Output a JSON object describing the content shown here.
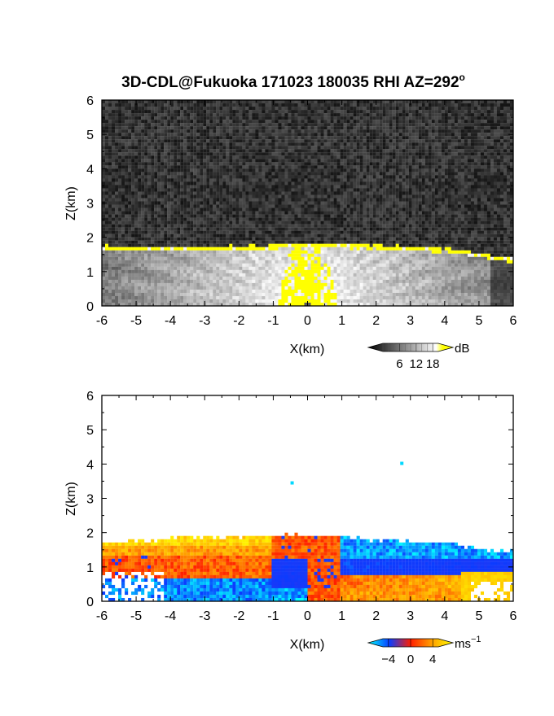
{
  "title": "3D-CDL@Fukuoka 171023 180035 RHI AZ=292",
  "title_sup": "o",
  "chart_data": [
    {
      "type": "heatmap",
      "variable": "signal intensity",
      "xlabel": "X(km)",
      "ylabel": "Z(km)",
      "xlim": [
        -6,
        6
      ],
      "ylim": [
        0,
        6
      ],
      "xticks": [
        "-6",
        "-5",
        "-4",
        "-3",
        "-2",
        "-1",
        "0",
        "1",
        "2",
        "3",
        "4",
        "5",
        "6"
      ],
      "yticks": [
        "0",
        "1",
        "2",
        "3",
        "4",
        "5",
        "6"
      ],
      "colorbar": {
        "unit": "dB",
        "ticks": [
          "6",
          "12",
          "18"
        ],
        "range": [
          0,
          20
        ],
        "colors": [
          "#000000",
          "#ffffff",
          "#ffff00"
        ]
      },
      "layer_top_km": [
        1.75,
        1.72,
        1.72,
        1.73,
        1.75,
        1.78,
        1.8,
        1.82,
        1.82,
        1.8,
        1.78,
        1.72,
        1.68,
        1.62,
        1.55,
        1.45,
        1.4
      ],
      "layer_top_x_km": [
        -6,
        -5,
        -4,
        -3,
        -2,
        -1,
        -0.5,
        0,
        0.5,
        1,
        2,
        3,
        4,
        4.5,
        5,
        5.5,
        6
      ],
      "peak_value_dB": 18
    },
    {
      "type": "heatmap",
      "variable": "Doppler velocity",
      "xlabel": "X(km)",
      "ylabel": "Z(km)",
      "xlim": [
        -6,
        6
      ],
      "ylim": [
        0,
        6
      ],
      "xticks": [
        "-6",
        "-5",
        "-4",
        "-3",
        "-2",
        "-1",
        "0",
        "1",
        "2",
        "3",
        "4",
        "5",
        "6"
      ],
      "yticks": [
        "0",
        "1",
        "2",
        "3",
        "4",
        "5",
        "6"
      ],
      "colorbar": {
        "unit": "ms",
        "unit_sup": "−1",
        "ticks": [
          "−4",
          "0",
          "4"
        ],
        "range": [
          -5,
          5
        ],
        "colors": [
          "#00ffff",
          "#0040ff",
          "#ff2000",
          "#ffff00"
        ]
      },
      "isolated_points": [
        {
          "x": -0.45,
          "z": 3.45,
          "v": -4.5
        },
        {
          "x": 2.75,
          "z": 4.02,
          "v": -4.5
        }
      ]
    }
  ]
}
